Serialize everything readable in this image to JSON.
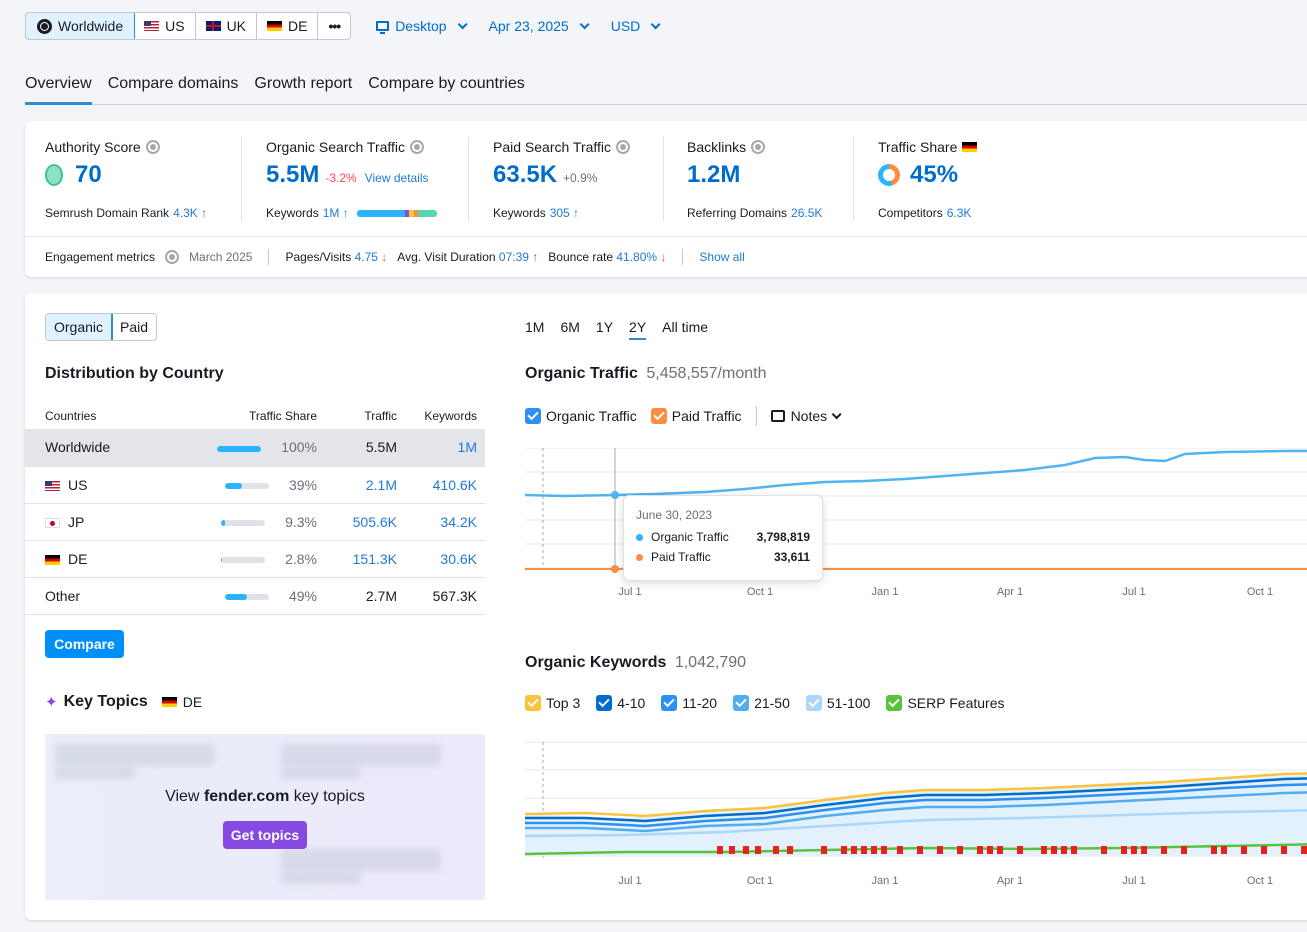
{
  "top": {
    "regions": [
      {
        "label": "Worldwide",
        "flag": "globe"
      },
      {
        "label": "US",
        "flag": "us"
      },
      {
        "label": "UK",
        "flag": "uk"
      },
      {
        "label": "DE",
        "flag": "de"
      }
    ],
    "more": "•••",
    "device": "Desktop",
    "date": "Apr 23, 2025",
    "currency": "USD"
  },
  "tabs": [
    "Overview",
    "Compare domains",
    "Growth report",
    "Compare by countries"
  ],
  "metrics": {
    "authority": {
      "label": "Authority Score",
      "value": "70",
      "sub_label": "Semrush Domain Rank",
      "sub_value": "4.3K ↑"
    },
    "organic": {
      "label": "Organic Search Traffic",
      "value": "5.5M",
      "change": "-3.2%",
      "link": "View details",
      "sub_label": "Keywords",
      "sub_value": "1M ↑"
    },
    "paid": {
      "label": "Paid Search Traffic",
      "value": "63.5K",
      "change": "+0.9%",
      "sub_label": "Keywords",
      "sub_value": "305 ↑"
    },
    "backlinks": {
      "label": "Backlinks",
      "value": "1.2M",
      "sub_label": "Referring Domains",
      "sub_value": "26.5K"
    },
    "share": {
      "label": "Traffic Share",
      "value": "45%",
      "share_fraction": 0.45,
      "sub_label": "Competitors",
      "sub_value": "6.3K"
    }
  },
  "engagement": {
    "label": "Engagement metrics",
    "month": "March 2025",
    "pages_label": "Pages/Visits",
    "pages_value": "4.75",
    "pages_dir": "↓",
    "duration_label": "Avg. Visit Duration",
    "duration_value": "07:39",
    "duration_dir": "↑",
    "bounce_label": "Bounce rate",
    "bounce_value": "41.80%",
    "bounce_dir": "↓",
    "show_all": "Show all"
  },
  "left": {
    "toggle": [
      "Organic",
      "Paid"
    ],
    "dist_title": "Distribution by Country",
    "columns": [
      "Countries",
      "Traffic Share",
      "Traffic",
      "Keywords"
    ],
    "rows": [
      {
        "country": "Worldwide",
        "flag": "",
        "share": "100%",
        "share_fraction": 1.0,
        "traffic": "5.5M",
        "keywords": "1M"
      },
      {
        "country": "US",
        "flag": "us",
        "share": "39%",
        "share_fraction": 0.39,
        "traffic": "2.1M",
        "keywords": "410.6K"
      },
      {
        "country": "JP",
        "flag": "jp",
        "share": "9.3%",
        "share_fraction": 0.093,
        "traffic": "505.6K",
        "keywords": "34.2K"
      },
      {
        "country": "DE",
        "flag": "de",
        "share": "2.8%",
        "share_fraction": 0.028,
        "traffic": "151.3K",
        "keywords": "30.6K"
      },
      {
        "country": "Other",
        "flag": "",
        "share": "49%",
        "share_fraction": 0.49,
        "traffic": "2.7M",
        "keywords": "567.3K"
      }
    ],
    "compare": "Compare",
    "topics_title": "Key Topics",
    "topics_country": "DE",
    "topics_pre": "View ",
    "topics_domain": "fender.com",
    "topics_post": " key topics",
    "get_topics": "Get topics"
  },
  "right": {
    "periods": [
      "1M",
      "6M",
      "1Y",
      "2Y",
      "All time"
    ],
    "active_period": "2Y",
    "traffic_title": "Organic Traffic",
    "traffic_value": "5,458,557/month",
    "legend1": [
      "Organic Traffic",
      "Paid Traffic"
    ],
    "notes": "Notes",
    "x_ticks": [
      "Jul 1",
      "Oct 1",
      "Jan 1",
      "Apr 1",
      "Jul 1",
      "Oct 1"
    ],
    "tooltip": {
      "date": "June 30, 2023",
      "organic_label": "Organic Traffic",
      "organic_value": "3,798,819",
      "paid_label": "Paid Traffic",
      "paid_value": "33,611"
    },
    "keywords_title": "Organic Keywords",
    "keywords_value": "1,042,790",
    "legend2": [
      "Top 3",
      "4-10",
      "11-20",
      "21-50",
      "51-100",
      "SERP Features"
    ]
  },
  "colors": {
    "organic": "#50b4f0",
    "paid": "#ff8c43",
    "top3": "#fdc23c",
    "k4": "#006dca",
    "k11": "#2d8ff0",
    "k21": "#51adf0",
    "k51": "#a9d6f9",
    "serp": "#59c23b",
    "accent": "#008ff8",
    "purple": "#8649e1"
  }
}
